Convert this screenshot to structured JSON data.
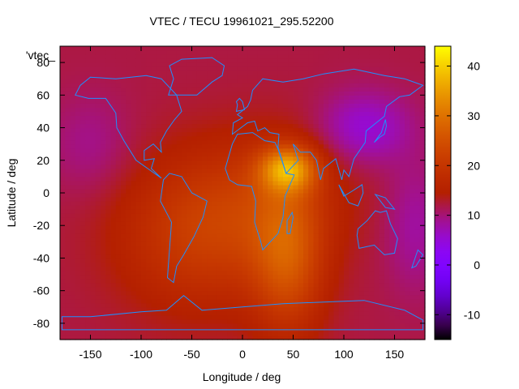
{
  "chart_data": {
    "type": "heatmap",
    "title": "VTEC / TECU 19961021_295.52200",
    "xlabel": "Longitude / deg",
    "ylabel": "Latitude / deg",
    "legend_key": "'vtec_",
    "xlim": [
      -180,
      180
    ],
    "ylim": [
      -90,
      90
    ],
    "x_ticks": [
      -150,
      -100,
      -50,
      0,
      50,
      100,
      150
    ],
    "y_ticks": [
      -80,
      -60,
      -40,
      -20,
      0,
      20,
      40,
      60,
      80
    ],
    "colorbar": {
      "range": [
        -15,
        44
      ],
      "ticks": [
        -10,
        0,
        10,
        20,
        30,
        40
      ],
      "colormap": "gnuplot"
    },
    "grid": false,
    "value_features": {
      "background_level": 12,
      "peak": {
        "lon": 45,
        "lat": 15,
        "value": 39
      },
      "southern_anomaly_lon": 45,
      "low_region": {
        "lon": 120,
        "lat": 40,
        "value": 5
      }
    }
  },
  "colors": {
    "coastline": "#1e90ff",
    "frame": "#000000"
  }
}
